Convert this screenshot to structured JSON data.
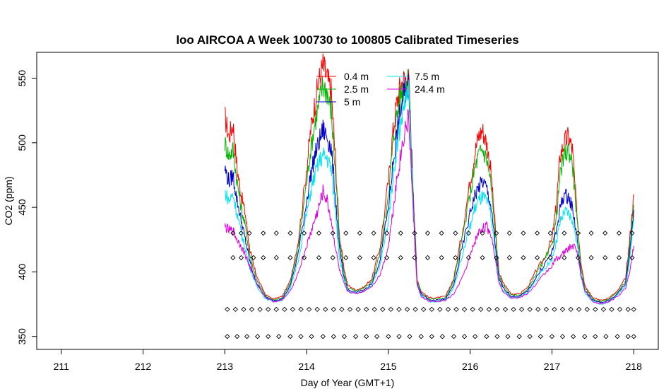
{
  "chart_data": {
    "type": "line",
    "title": "loo AIRCOA A  Week 100730 to 100805  Calibrated Timeseries",
    "xlabel": "Day of Year (GMT+1)",
    "ylabel": "CO2 (ppm)",
    "xlim": [
      210.7,
      218.3
    ],
    "ylim": [
      340,
      570
    ],
    "xticks": [
      211,
      212,
      213,
      214,
      215,
      216,
      217,
      218
    ],
    "yticks": [
      350,
      400,
      450,
      500,
      550
    ],
    "grid": false,
    "legend_position": "top-center",
    "series": [
      {
        "name": "0.4 m",
        "color": "#ff0000",
        "x": [
          213.0,
          213.05,
          213.1,
          213.15,
          213.2,
          213.25,
          213.3,
          213.35,
          213.4,
          213.5,
          213.6,
          213.7,
          213.8,
          213.9,
          214.0,
          214.05,
          214.1,
          214.15,
          214.2,
          214.25,
          214.3,
          214.35,
          214.4,
          214.45,
          214.5,
          214.6,
          214.7,
          214.8,
          214.9,
          215.0,
          215.05,
          215.1,
          215.15,
          215.2,
          215.25,
          215.3,
          215.35,
          215.4,
          215.5,
          215.6,
          215.7,
          215.8,
          215.9,
          216.0,
          216.05,
          216.1,
          216.15,
          216.2,
          216.25,
          216.3,
          216.35,
          216.4,
          216.5,
          216.6,
          216.7,
          216.8,
          216.9,
          217.0,
          217.05,
          217.1,
          217.15,
          217.2,
          217.25,
          217.3,
          217.35,
          217.4,
          217.5,
          217.6,
          217.7,
          217.8,
          217.9,
          217.95,
          218.0
        ],
        "y": [
          520,
          505,
          515,
          480,
          460,
          445,
          420,
          405,
          395,
          382,
          379,
          381,
          393,
          425,
          480,
          510,
          530,
          548,
          560,
          550,
          540,
          490,
          430,
          405,
          390,
          386,
          388,
          395,
          420,
          470,
          505,
          530,
          545,
          550,
          548,
          470,
          395,
          385,
          380,
          380,
          381,
          395,
          430,
          470,
          490,
          505,
          510,
          500,
          480,
          440,
          400,
          392,
          383,
          383,
          388,
          400,
          410,
          425,
          450,
          490,
          500,
          505,
          495,
          450,
          410,
          390,
          380,
          378,
          380,
          385,
          395,
          425,
          460
        ]
      },
      {
        "name": "2.5 m",
        "color": "#00b400",
        "x": [
          213.0,
          213.05,
          213.1,
          213.15,
          213.2,
          213.25,
          213.3,
          213.35,
          213.4,
          213.5,
          213.6,
          213.7,
          213.8,
          213.9,
          214.0,
          214.05,
          214.1,
          214.15,
          214.2,
          214.25,
          214.3,
          214.35,
          214.4,
          214.45,
          214.5,
          214.6,
          214.7,
          214.8,
          214.9,
          215.0,
          215.05,
          215.1,
          215.15,
          215.2,
          215.25,
          215.3,
          215.35,
          215.4,
          215.5,
          215.6,
          215.7,
          215.8,
          215.9,
          216.0,
          216.05,
          216.1,
          216.15,
          216.2,
          216.25,
          216.3,
          216.35,
          216.4,
          216.5,
          216.6,
          216.7,
          216.8,
          216.9,
          217.0,
          217.05,
          217.1,
          217.15,
          217.2,
          217.25,
          217.3,
          217.35,
          217.4,
          217.5,
          217.6,
          217.7,
          217.8,
          217.9,
          217.95,
          218.0
        ],
        "y": [
          500,
          490,
          495,
          470,
          450,
          435,
          415,
          402,
          392,
          381,
          378,
          380,
          391,
          420,
          470,
          495,
          515,
          530,
          545,
          540,
          525,
          480,
          425,
          402,
          388,
          385,
          387,
          393,
          415,
          462,
          495,
          520,
          538,
          546,
          545,
          465,
          393,
          384,
          379,
          379,
          380,
          393,
          425,
          460,
          478,
          490,
          495,
          488,
          470,
          435,
          398,
          390,
          382,
          382,
          386,
          398,
          408,
          420,
          440,
          475,
          490,
          495,
          485,
          445,
          405,
          388,
          379,
          377,
          379,
          384,
          393,
          420,
          452
        ]
      },
      {
        "name": "5 m",
        "color": "#0000cc",
        "x": [
          213.0,
          213.05,
          213.1,
          213.15,
          213.2,
          213.25,
          213.3,
          213.35,
          213.4,
          213.5,
          213.6,
          213.7,
          213.8,
          213.9,
          214.0,
          214.05,
          214.1,
          214.15,
          214.2,
          214.25,
          214.3,
          214.35,
          214.4,
          214.45,
          214.5,
          214.6,
          214.7,
          214.8,
          214.9,
          215.0,
          215.05,
          215.1,
          215.15,
          215.2,
          215.25,
          215.3,
          215.35,
          215.4,
          215.5,
          215.6,
          215.7,
          215.8,
          215.9,
          216.0,
          216.05,
          216.1,
          216.15,
          216.2,
          216.25,
          216.3,
          216.35,
          216.4,
          216.5,
          216.6,
          216.7,
          216.8,
          216.9,
          217.0,
          217.05,
          217.1,
          217.15,
          217.2,
          217.25,
          217.3,
          217.35,
          217.4,
          217.5,
          217.6,
          217.7,
          217.8,
          217.9,
          217.95,
          218.0
        ],
        "y": [
          480,
          470,
          475,
          455,
          440,
          425,
          410,
          398,
          390,
          380,
          378,
          379,
          389,
          415,
          455,
          475,
          490,
          500,
          510,
          505,
          495,
          460,
          418,
          398,
          386,
          384,
          386,
          391,
          410,
          450,
          480,
          505,
          525,
          540,
          545,
          460,
          392,
          383,
          378,
          378,
          379,
          390,
          418,
          445,
          458,
          465,
          470,
          465,
          452,
          425,
          395,
          388,
          381,
          381,
          385,
          395,
          405,
          415,
          430,
          450,
          460,
          458,
          450,
          430,
          400,
          386,
          378,
          376,
          378,
          383,
          391,
          415,
          448
        ]
      },
      {
        "name": "7.5 m",
        "color": "#00e5ee",
        "x": [
          213.0,
          213.05,
          213.1,
          213.15,
          213.2,
          213.25,
          213.3,
          213.35,
          213.4,
          213.5,
          213.6,
          213.7,
          213.8,
          213.9,
          214.0,
          214.05,
          214.1,
          214.15,
          214.2,
          214.25,
          214.3,
          214.35,
          214.4,
          214.45,
          214.5,
          214.6,
          214.7,
          214.8,
          214.9,
          215.0,
          215.05,
          215.1,
          215.15,
          215.2,
          215.25,
          215.3,
          215.35,
          215.4,
          215.5,
          215.6,
          215.7,
          215.8,
          215.9,
          216.0,
          216.05,
          216.1,
          216.15,
          216.2,
          216.25,
          216.3,
          216.35,
          216.4,
          216.5,
          216.6,
          216.7,
          216.8,
          216.9,
          217.0,
          217.05,
          217.1,
          217.15,
          217.2,
          217.25,
          217.3,
          217.35,
          217.4,
          217.5,
          217.6,
          217.7,
          217.8,
          217.9,
          217.95,
          218.0
        ],
        "y": [
          462,
          455,
          460,
          445,
          430,
          418,
          405,
          395,
          388,
          379,
          377,
          378,
          387,
          410,
          445,
          462,
          475,
          485,
          490,
          488,
          480,
          450,
          412,
          396,
          385,
          383,
          385,
          390,
          405,
          440,
          470,
          495,
          515,
          532,
          538,
          455,
          390,
          382,
          377,
          377,
          378,
          388,
          412,
          435,
          448,
          455,
          458,
          455,
          445,
          420,
          393,
          386,
          380,
          380,
          384,
          393,
          402,
          410,
          422,
          438,
          446,
          445,
          440,
          425,
          398,
          384,
          377,
          375,
          377,
          382,
          389,
          410,
          440
        ]
      },
      {
        "name": "24.4 m",
        "color": "#dd00dd",
        "x": [
          213.0,
          213.05,
          213.1,
          213.15,
          213.2,
          213.25,
          213.3,
          213.35,
          213.4,
          213.5,
          213.6,
          213.7,
          213.8,
          213.9,
          214.0,
          214.05,
          214.1,
          214.15,
          214.2,
          214.25,
          214.3,
          214.35,
          214.4,
          214.45,
          214.5,
          214.6,
          214.7,
          214.8,
          214.9,
          215.0,
          215.05,
          215.1,
          215.15,
          215.2,
          215.25,
          215.3,
          215.35,
          215.4,
          215.5,
          215.6,
          215.7,
          215.8,
          215.9,
          216.0,
          216.05,
          216.1,
          216.15,
          216.2,
          216.25,
          216.3,
          216.35,
          216.4,
          216.5,
          216.6,
          216.7,
          216.8,
          216.9,
          217.0,
          217.05,
          217.1,
          217.15,
          217.2,
          217.25,
          217.3,
          217.35,
          217.4,
          217.5,
          217.6,
          217.7,
          217.8,
          217.9,
          217.95,
          218.0
        ],
        "y": [
          435,
          432,
          432,
          425,
          420,
          413,
          405,
          397,
          390,
          380,
          377,
          378,
          385,
          400,
          420,
          430,
          440,
          450,
          462,
          455,
          440,
          420,
          402,
          392,
          385,
          383,
          385,
          389,
          398,
          420,
          445,
          470,
          490,
          510,
          518,
          450,
          390,
          381,
          377,
          377,
          378,
          383,
          395,
          412,
          422,
          430,
          434,
          435,
          430,
          415,
          392,
          385,
          380,
          380,
          383,
          390,
          398,
          405,
          410,
          412,
          415,
          418,
          420,
          418,
          400,
          386,
          377,
          375,
          377,
          381,
          387,
          400,
          420
        ]
      }
    ],
    "flag_rows": [
      {
        "y": 430,
        "x": [
          213.1,
          213.2,
          213.3,
          213.47,
          213.63,
          213.8,
          213.97,
          214.15,
          214.32,
          214.48,
          214.65,
          214.82,
          214.98,
          215.15,
          215.32,
          215.48,
          215.65,
          215.82,
          215.98,
          216.15,
          216.32,
          216.48,
          216.65,
          216.82,
          216.98,
          217.15,
          217.32,
          217.48,
          217.65,
          217.82,
          217.98
        ]
      },
      {
        "y": 411,
        "x": [
          213.1,
          213.2,
          213.35,
          213.47,
          213.63,
          213.8,
          213.97,
          214.15,
          214.32,
          214.48,
          214.65,
          214.82,
          214.98,
          215.15,
          215.32,
          215.48,
          215.65,
          215.82,
          215.98,
          216.15,
          216.32,
          216.48,
          216.65,
          216.82,
          216.98,
          217.15,
          217.32,
          217.48,
          217.65,
          217.82,
          217.98
        ]
      },
      {
        "y": 371,
        "x": [
          213.03,
          213.13,
          213.23,
          213.33,
          213.43,
          213.53,
          213.63,
          213.73,
          213.83,
          213.93,
          214.03,
          214.13,
          214.23,
          214.33,
          214.43,
          214.53,
          214.63,
          214.73,
          214.83,
          214.93,
          215.03,
          215.13,
          215.23,
          215.33,
          215.43,
          215.53,
          215.63,
          215.73,
          215.83,
          215.93,
          216.03,
          216.13,
          216.23,
          216.33,
          216.43,
          216.53,
          216.63,
          216.73,
          216.83,
          216.93,
          217.03,
          217.13,
          217.23,
          217.33,
          217.43,
          217.53,
          217.63,
          217.73,
          217.83,
          217.93,
          218.0
        ]
      },
      {
        "y": 350,
        "x": [
          213.03,
          213.15,
          213.27,
          213.4,
          213.53,
          213.66,
          213.8,
          213.93,
          214.06,
          214.2,
          214.33,
          214.46,
          214.6,
          214.73,
          214.86,
          215.0,
          215.13,
          215.26,
          215.4,
          215.53,
          215.66,
          215.8,
          215.93,
          216.06,
          216.2,
          216.33,
          216.46,
          216.6,
          216.73,
          216.86,
          217.0,
          217.13,
          217.26,
          217.4,
          217.53,
          217.66,
          217.8,
          217.93,
          218.0
        ]
      }
    ]
  }
}
